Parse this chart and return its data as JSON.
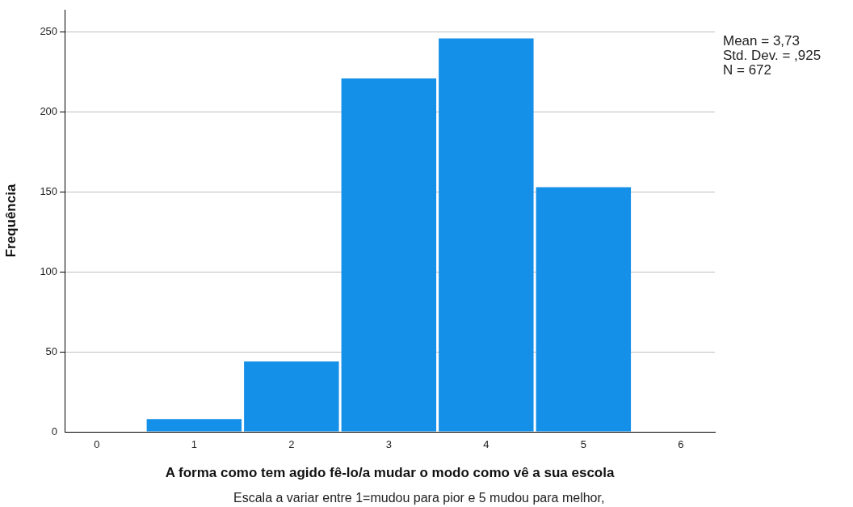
{
  "chart_data": {
    "type": "histogram",
    "xlabel": "A forma como tem agido fê-lo/a mudar o modo como vê a sua escola",
    "ylabel": "Frequência",
    "bins": [
      0.5,
      1.5,
      2.5,
      3.5,
      4.5,
      5.5
    ],
    "values": [
      8,
      44,
      221,
      246,
      153
    ],
    "color": "#1590e8",
    "xlim": [
      -0.33,
      6.35
    ],
    "xticks": [
      0,
      1,
      2,
      3,
      4,
      5,
      6
    ],
    "ylim": [
      0,
      264
    ],
    "yticks": [
      0,
      50,
      100,
      150,
      200,
      250
    ],
    "grid": "y",
    "legend": false,
    "annotations": [
      "Mean = 3,73",
      "Std. Dev. = ,925",
      "N = 672",
      "Escala a variar entre 1=mudou para pior e 5 mudou para melhor,"
    ]
  }
}
